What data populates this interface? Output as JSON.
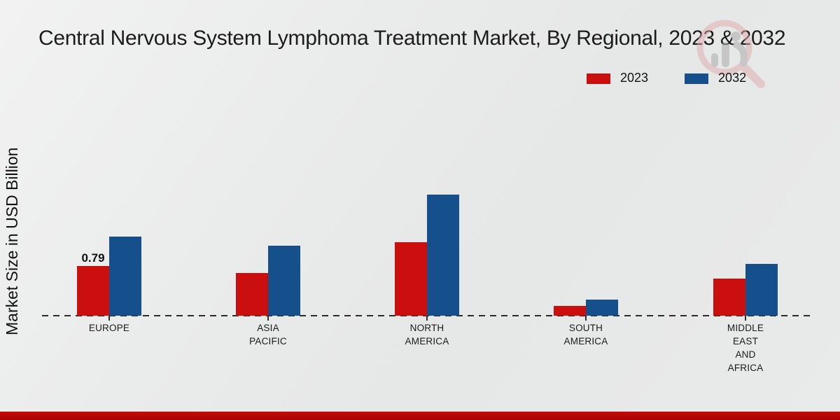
{
  "title": "Central Nervous System Lymphoma Treatment Market, By Regional, 2023 & 2032",
  "y_axis_label": "Market Size in USD Billion",
  "legend": {
    "items": [
      {
        "label": "2023",
        "color": "#cb0e0e"
      },
      {
        "label": "2032",
        "color": "#15508d"
      }
    ]
  },
  "watermark": {
    "name": "market-research-magnifier-logo",
    "ring_color": "#dfaaaa",
    "glyph_color": "#a6a6a6"
  },
  "footer": {
    "strip_color": "#c10606"
  },
  "chart_data": {
    "type": "bar",
    "title": "Central Nervous System Lymphoma Treatment Market, By Regional, 2023 & 2032",
    "ylabel": "Market Size in USD Billion",
    "xlabel": "",
    "categories": [
      "EUROPE",
      "ASIA PACIFIC",
      "NORTH AMERICA",
      "SOUTH AMERICA",
      "MIDDLE EAST AND AFRICA"
    ],
    "category_label_lines": [
      [
        "EUROPE"
      ],
      [
        "ASIA",
        "PACIFIC"
      ],
      [
        "NORTH",
        "AMERICA"
      ],
      [
        "SOUTH",
        "AMERICA"
      ],
      [
        "MIDDLE",
        "EAST",
        "AND",
        "AFRICA"
      ]
    ],
    "series": [
      {
        "name": "2023",
        "color": "#cb0e0e",
        "values": [
          0.79,
          0.68,
          1.17,
          0.16,
          0.59
        ]
      },
      {
        "name": "2032",
        "color": "#15508d",
        "values": [
          1.25,
          1.11,
          1.92,
          0.25,
          0.82
        ]
      }
    ],
    "data_labels": [
      {
        "series": "2023",
        "category": "EUROPE",
        "text": "0.79"
      }
    ],
    "ylim": [
      0,
      2.2
    ],
    "grid": false,
    "baseline_style": "dashed",
    "legend_position": "top-right"
  }
}
